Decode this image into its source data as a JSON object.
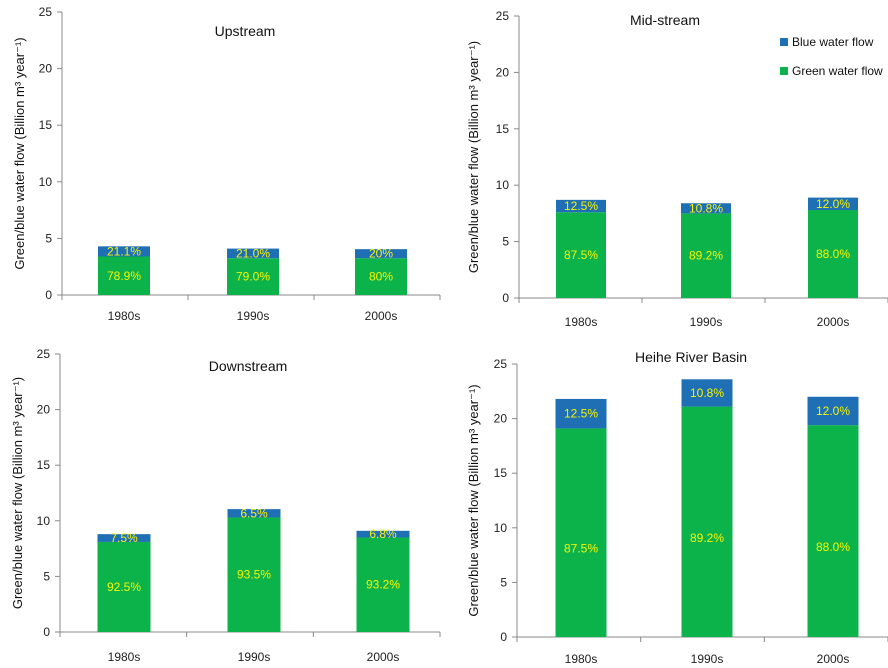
{
  "colors": {
    "blue": "#1f6fb5",
    "green": "#0cb34b",
    "label": "#f5f500",
    "axis": "#888888"
  },
  "legend": {
    "blue": "Blue water flow",
    "green": "Green water flow"
  },
  "chart_data": [
    {
      "type": "bar",
      "title": "Upstream",
      "ylabel": "Green/blue water flow (Billion m³ year⁻¹)",
      "ylim": [
        0,
        25
      ],
      "yticks": [
        0,
        5,
        10,
        15,
        20,
        25
      ],
      "categories": [
        "1980s",
        "1990s",
        "2000s"
      ],
      "series": [
        {
          "name": "Green water flow",
          "values": [
            3.4,
            3.25,
            3.25
          ],
          "labels": [
            "78.9%",
            "79.0%",
            "80%"
          ]
        },
        {
          "name": "Blue water flow",
          "values": [
            0.9,
            0.85,
            0.8
          ],
          "labels": [
            "21.1%",
            "21.0%",
            "20%"
          ]
        }
      ]
    },
    {
      "type": "bar",
      "title": "Mid-stream",
      "ylabel": "Green/blue water flow (Billion m³ year⁻¹)",
      "ylim": [
        0,
        25
      ],
      "yticks": [
        0,
        5,
        10,
        15,
        20,
        25
      ],
      "categories": [
        "1980s",
        "1990s",
        "2000s"
      ],
      "legend": "top-right",
      "series": [
        {
          "name": "Green water flow",
          "values": [
            7.6,
            7.5,
            7.8
          ],
          "labels": [
            "87.5%",
            "89.2%",
            "88.0%"
          ]
        },
        {
          "name": "Blue water flow",
          "values": [
            1.1,
            0.9,
            1.1
          ],
          "labels": [
            "12.5%",
            "10.8%",
            "12.0%"
          ]
        }
      ]
    },
    {
      "type": "bar",
      "title": "Downstream",
      "ylabel": "Green/blue water flow (Billion m³ year⁻¹)",
      "ylim": [
        0,
        25
      ],
      "yticks": [
        0,
        5,
        10,
        15,
        20,
        25
      ],
      "categories": [
        "1980s",
        "1990s",
        "2000s"
      ],
      "series": [
        {
          "name": "Green water flow",
          "values": [
            8.1,
            10.3,
            8.5
          ],
          "labels": [
            "92.5%",
            "93.5%",
            "93.2%"
          ]
        },
        {
          "name": "Blue water flow",
          "values": [
            0.7,
            0.75,
            0.6
          ],
          "labels": [
            "7.5%",
            "6.5%",
            "6.8%"
          ]
        }
      ]
    },
    {
      "type": "bar",
      "title": "Heihe River Basin",
      "ylabel": "Green/blue water flow (Billion m³ year⁻¹)",
      "ylim": [
        0,
        25
      ],
      "yticks": [
        0,
        5,
        10,
        15,
        20,
        25
      ],
      "categories": [
        "1980s",
        "1990s",
        "2000s"
      ],
      "series": [
        {
          "name": "Green water flow",
          "values": [
            19.1,
            21.1,
            19.4
          ],
          "labels": [
            "87.5%",
            "89.2%",
            "88.0%"
          ]
        },
        {
          "name": "Blue water flow",
          "values": [
            2.7,
            2.5,
            2.6
          ],
          "labels": [
            "12.5%",
            "10.8%",
            "12.0%"
          ]
        }
      ]
    }
  ]
}
